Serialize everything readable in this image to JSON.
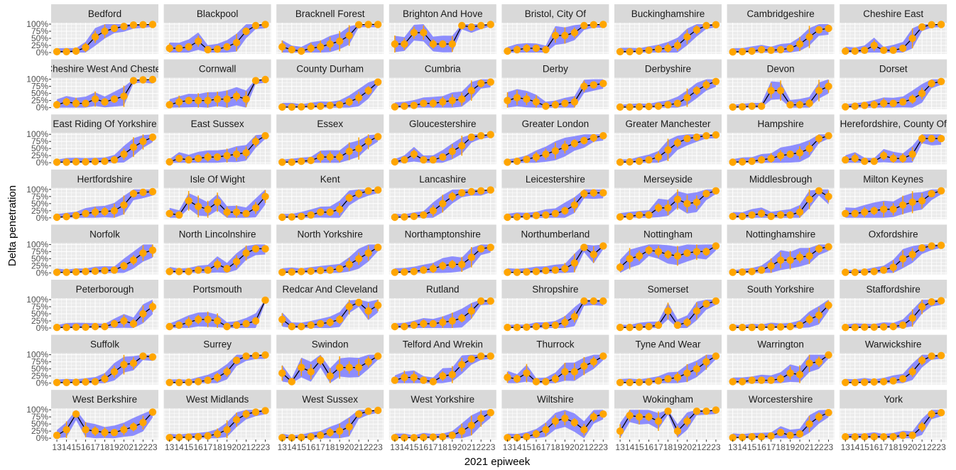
{
  "chart_data": {
    "type": "faceted_line_with_points_and_ribbon",
    "xlabel": "2021 epiweek",
    "ylabel": "Delta penetration",
    "x_ticks": [
      13,
      14,
      15,
      16,
      17,
      18,
      19,
      20,
      21,
      22,
      23
    ],
    "x_tick_labels": [
      "13",
      "14",
      "15",
      "16",
      "17",
      "18",
      "19",
      "20",
      "21",
      "22",
      "23"
    ],
    "y_ticks": [
      0,
      0.25,
      0.5,
      0.75,
      1.0
    ],
    "y_tick_labels": [
      "0%",
      "25%",
      "50%",
      "75%",
      "100%"
    ],
    "xlim": [
      12.4,
      23.6
    ],
    "ylim": [
      -0.05,
      1.05
    ],
    "colors": {
      "panel_bg": "#ebebeb",
      "grid": "#ffffff",
      "strip_bg": "#d9d9d9",
      "ribbon": "#7b7bff",
      "line": "#000000",
      "points": "#ffa500",
      "errorbars": "#ffa500"
    },
    "panels": [
      {
        "name": "Bedford",
        "y": [
          0.03,
          0.03,
          0.05,
          0.18,
          0.55,
          0.75,
          0.85,
          0.92,
          0.97,
          0.98,
          0.99
        ]
      },
      {
        "name": "Blackpool",
        "y": [
          0.15,
          0.15,
          0.2,
          0.4,
          0.1,
          0.12,
          0.2,
          0.35,
          0.75,
          0.95,
          0.99
        ]
      },
      {
        "name": "Bracknell Forest",
        "y": [
          0.2,
          0.1,
          0.05,
          0.15,
          0.2,
          0.3,
          0.4,
          0.6,
          0.98,
          0.99,
          0.99
        ]
      },
      {
        "name": "Brighton And Hove",
        "y": [
          0.3,
          0.3,
          0.7,
          0.7,
          0.3,
          0.3,
          0.3,
          0.95,
          0.9,
          0.95,
          0.99
        ]
      },
      {
        "name": "Bristol, City Of",
        "y": [
          0.05,
          0.1,
          0.15,
          0.15,
          0.1,
          0.6,
          0.6,
          0.7,
          0.95,
          0.98,
          0.99
        ]
      },
      {
        "name": "Buckinghamshire",
        "y": [
          0.03,
          0.03,
          0.05,
          0.08,
          0.12,
          0.15,
          0.25,
          0.55,
          0.8,
          0.95,
          0.98
        ]
      },
      {
        "name": "Cambridgeshire",
        "y": [
          0.02,
          0.03,
          0.05,
          0.1,
          0.08,
          0.1,
          0.15,
          0.3,
          0.55,
          0.8,
          0.85
        ]
      },
      {
        "name": "Cheshire East",
        "y": [
          0.05,
          0.05,
          0.08,
          0.25,
          0.08,
          0.08,
          0.15,
          0.5,
          0.9,
          0.98,
          0.99
        ]
      },
      {
        "name": "Cheshire West And Chester",
        "y": [
          0.1,
          0.2,
          0.15,
          0.15,
          0.3,
          0.2,
          0.3,
          0.4,
          0.95,
          0.98,
          0.99
        ]
      },
      {
        "name": "Cornwall",
        "y": [
          0.1,
          0.2,
          0.25,
          0.25,
          0.25,
          0.3,
          0.3,
          0.4,
          0.3,
          0.95,
          0.99
        ]
      },
      {
        "name": "County Durham",
        "y": [
          0.02,
          0.02,
          0.03,
          0.05,
          0.05,
          0.08,
          0.1,
          0.2,
          0.35,
          0.6,
          0.9
        ]
      },
      {
        "name": "Cumbria",
        "y": [
          0.03,
          0.05,
          0.08,
          0.15,
          0.15,
          0.2,
          0.25,
          0.3,
          0.6,
          0.85,
          0.9
        ]
      },
      {
        "name": "Derby",
        "y": [
          0.25,
          0.35,
          0.3,
          0.2,
          0.05,
          0.1,
          0.15,
          0.2,
          0.75,
          0.8,
          0.85
        ]
      },
      {
        "name": "Derbyshire",
        "y": [
          0.02,
          0.02,
          0.03,
          0.04,
          0.05,
          0.1,
          0.15,
          0.35,
          0.6,
          0.8,
          0.92
        ]
      },
      {
        "name": "Devon",
        "y": [
          0.02,
          0.03,
          0.05,
          0.05,
          0.6,
          0.6,
          0.1,
          0.1,
          0.15,
          0.6,
          0.75
        ]
      },
      {
        "name": "Dorset",
        "y": [
          0.03,
          0.05,
          0.08,
          0.1,
          0.15,
          0.15,
          0.2,
          0.3,
          0.5,
          0.85,
          0.92
        ]
      },
      {
        "name": "East Riding Of Yorkshire",
        "y": [
          0.02,
          0.02,
          0.03,
          0.03,
          0.04,
          0.05,
          0.1,
          0.3,
          0.55,
          0.75,
          0.9
        ]
      },
      {
        "name": "East Sussex",
        "y": [
          0.03,
          0.15,
          0.1,
          0.15,
          0.2,
          0.2,
          0.25,
          0.3,
          0.35,
          0.75,
          0.95
        ]
      },
      {
        "name": "Essex",
        "y": [
          0.02,
          0.02,
          0.05,
          0.08,
          0.2,
          0.2,
          0.2,
          0.4,
          0.5,
          0.75,
          0.92
        ]
      },
      {
        "name": "Gloucestershire",
        "y": [
          0.03,
          0.1,
          0.3,
          0.1,
          0.1,
          0.2,
          0.4,
          0.6,
          0.9,
          0.95,
          0.99
        ]
      },
      {
        "name": "Greater London",
        "y": [
          0.02,
          0.05,
          0.12,
          0.2,
          0.3,
          0.42,
          0.55,
          0.68,
          0.78,
          0.88,
          0.95
        ]
      },
      {
        "name": "Greater Manchester",
        "y": [
          0.02,
          0.03,
          0.05,
          0.1,
          0.2,
          0.45,
          0.7,
          0.85,
          0.9,
          0.95,
          0.98
        ]
      },
      {
        "name": "Hampshire",
        "y": [
          0.02,
          0.03,
          0.05,
          0.1,
          0.15,
          0.25,
          0.3,
          0.35,
          0.5,
          0.85,
          0.95
        ]
      },
      {
        "name": "Herefordshire, County Of",
        "y": [
          0.1,
          0.15,
          0.05,
          0.05,
          0.25,
          0.15,
          0.15,
          0.3,
          0.85,
          0.85,
          0.85
        ]
      },
      {
        "name": "Hertfordshire",
        "y": [
          0.02,
          0.04,
          0.08,
          0.15,
          0.2,
          0.22,
          0.25,
          0.45,
          0.85,
          0.9,
          0.92
        ]
      },
      {
        "name": "Isle Of Wight",
        "y": [
          0.15,
          0.1,
          0.6,
          0.4,
          0.3,
          0.55,
          0.2,
          0.2,
          0.15,
          0.35,
          0.75
        ]
      },
      {
        "name": "Kent",
        "y": [
          0.02,
          0.03,
          0.05,
          0.1,
          0.2,
          0.2,
          0.3,
          0.7,
          0.85,
          0.95,
          0.98
        ]
      },
      {
        "name": "Lancashire",
        "y": [
          0.02,
          0.03,
          0.05,
          0.1,
          0.25,
          0.5,
          0.75,
          0.88,
          0.92,
          0.95,
          0.98
        ]
      },
      {
        "name": "Leicestershire",
        "y": [
          0.02,
          0.03,
          0.05,
          0.08,
          0.1,
          0.15,
          0.25,
          0.45,
          0.85,
          0.88,
          0.88
        ]
      },
      {
        "name": "Merseyside",
        "y": [
          0.03,
          0.05,
          0.1,
          0.1,
          0.35,
          0.35,
          0.65,
          0.5,
          0.55,
          0.85,
          0.95
        ]
      },
      {
        "name": "Middlesbrough",
        "y": [
          0.05,
          0.05,
          0.1,
          0.15,
          0.05,
          0.1,
          0.1,
          0.2,
          0.65,
          0.95,
          0.75
        ]
      },
      {
        "name": "Milton Keynes",
        "y": [
          0.15,
          0.15,
          0.2,
          0.25,
          0.3,
          0.3,
          0.45,
          0.55,
          0.6,
          0.85,
          0.95
        ]
      },
      {
        "name": "Norfolk",
        "y": [
          0.02,
          0.02,
          0.03,
          0.05,
          0.06,
          0.08,
          0.1,
          0.25,
          0.45,
          0.7,
          0.8
        ]
      },
      {
        "name": "North Lincolnshire",
        "y": [
          0.05,
          0.05,
          0.05,
          0.1,
          0.1,
          0.3,
          0.15,
          0.4,
          0.7,
          0.85,
          0.85
        ]
      },
      {
        "name": "North Yorkshire",
        "y": [
          0.02,
          0.03,
          0.05,
          0.06,
          0.08,
          0.1,
          0.15,
          0.3,
          0.5,
          0.7,
          0.9
        ]
      },
      {
        "name": "Northamptonshire",
        "y": [
          0.02,
          0.03,
          0.05,
          0.1,
          0.15,
          0.25,
          0.3,
          0.3,
          0.55,
          0.85,
          0.9
        ]
      },
      {
        "name": "Northumberland",
        "y": [
          0.02,
          0.02,
          0.03,
          0.05,
          0.08,
          0.1,
          0.15,
          0.35,
          0.9,
          0.65,
          0.95
        ]
      },
      {
        "name": "Nottingham",
        "y": [
          0.2,
          0.5,
          0.6,
          0.8,
          0.75,
          0.65,
          0.6,
          0.7,
          0.75,
          0.75,
          0.95
        ]
      },
      {
        "name": "Nottinghamshire",
        "y": [
          0.02,
          0.03,
          0.05,
          0.1,
          0.25,
          0.45,
          0.45,
          0.55,
          0.6,
          0.85,
          0.92
        ]
      },
      {
        "name": "Oxfordshire",
        "y": [
          0.02,
          0.02,
          0.03,
          0.05,
          0.1,
          0.2,
          0.5,
          0.65,
          0.88,
          0.95,
          0.97
        ]
      },
      {
        "name": "Peterborough",
        "y": [
          0.02,
          0.02,
          0.03,
          0.03,
          0.05,
          0.05,
          0.15,
          0.25,
          0.15,
          0.5,
          0.75
        ]
      },
      {
        "name": "Portsmouth",
        "y": [
          0.05,
          0.1,
          0.2,
          0.3,
          0.3,
          0.25,
          0.05,
          0.1,
          0.15,
          0.25,
          0.98
        ]
      },
      {
        "name": "Redcar And Cleveland",
        "y": [
          0.3,
          0.05,
          0.05,
          0.1,
          0.15,
          0.2,
          0.3,
          0.75,
          0.9,
          0.6,
          0.8
        ]
      },
      {
        "name": "Rutland",
        "y": [
          0.05,
          0.05,
          0.1,
          0.15,
          0.15,
          0.2,
          0.25,
          0.35,
          0.6,
          0.95,
          0.95
        ]
      },
      {
        "name": "Shropshire",
        "y": [
          0.02,
          0.02,
          0.03,
          0.05,
          0.08,
          0.1,
          0.2,
          0.4,
          0.95,
          0.95,
          0.95
        ]
      },
      {
        "name": "Somerset",
        "y": [
          0.02,
          0.02,
          0.03,
          0.05,
          0.1,
          0.6,
          0.1,
          0.2,
          0.6,
          0.85,
          0.95
        ]
      },
      {
        "name": "South Yorkshire",
        "y": [
          0.02,
          0.02,
          0.02,
          0.03,
          0.03,
          0.04,
          0.05,
          0.1,
          0.3,
          0.45,
          0.8
        ]
      },
      {
        "name": "Staffordshire",
        "y": [
          0.02,
          0.02,
          0.03,
          0.03,
          0.04,
          0.05,
          0.1,
          0.35,
          0.75,
          0.92,
          0.96
        ]
      },
      {
        "name": "Suffolk",
        "y": [
          0.02,
          0.02,
          0.03,
          0.04,
          0.05,
          0.15,
          0.4,
          0.65,
          0.7,
          0.95,
          0.92
        ]
      },
      {
        "name": "Surrey",
        "y": [
          0.02,
          0.02,
          0.03,
          0.05,
          0.1,
          0.2,
          0.4,
          0.8,
          0.95,
          0.97,
          0.99
        ]
      },
      {
        "name": "Swindon",
        "y": [
          0.35,
          0.05,
          0.55,
          0.4,
          0.8,
          0.25,
          0.55,
          0.55,
          0.55,
          0.75,
          0.95
        ]
      },
      {
        "name": "Telford And Wrekin",
        "y": [
          0.1,
          0.2,
          0.2,
          0.1,
          0.05,
          0.25,
          0.3,
          0.65,
          0.85,
          0.95,
          0.95
        ]
      },
      {
        "name": "Thurrock",
        "y": [
          0.2,
          0.15,
          0.35,
          0.05,
          0.05,
          0.15,
          0.4,
          0.4,
          0.6,
          0.75,
          0.95
        ]
      },
      {
        "name": "Tyne And Wear",
        "y": [
          0.02,
          0.02,
          0.03,
          0.04,
          0.08,
          0.15,
          0.2,
          0.35,
          0.5,
          0.75,
          0.95
        ]
      },
      {
        "name": "Warrington",
        "y": [
          0.05,
          0.05,
          0.1,
          0.1,
          0.1,
          0.15,
          0.35,
          0.3,
          0.7,
          0.75,
          0.99
        ]
      },
      {
        "name": "Warwickshire",
        "y": [
          0.02,
          0.02,
          0.03,
          0.04,
          0.05,
          0.08,
          0.15,
          0.4,
          0.8,
          0.95,
          0.97
        ]
      },
      {
        "name": "West Berkshire",
        "y": [
          0.1,
          0.3,
          0.85,
          0.3,
          0.25,
          0.2,
          0.2,
          0.3,
          0.4,
          0.55,
          0.92
        ]
      },
      {
        "name": "West Midlands",
        "y": [
          0.02,
          0.03,
          0.04,
          0.05,
          0.08,
          0.15,
          0.3,
          0.65,
          0.85,
          0.92,
          0.97
        ]
      },
      {
        "name": "West Sussex",
        "y": [
          0.02,
          0.02,
          0.03,
          0.05,
          0.1,
          0.2,
          0.25,
          0.4,
          0.85,
          0.95,
          0.98
        ]
      },
      {
        "name": "West Yorkshire",
        "y": [
          0.02,
          0.02,
          0.02,
          0.03,
          0.04,
          0.05,
          0.1,
          0.25,
          0.45,
          0.7,
          0.9
        ]
      },
      {
        "name": "Wiltshire",
        "y": [
          0.02,
          0.02,
          0.05,
          0.15,
          0.3,
          0.6,
          0.7,
          0.55,
          0.3,
          0.75,
          0.85
        ]
      },
      {
        "name": "Wokingham",
        "y": [
          0.25,
          0.8,
          0.75,
          0.75,
          0.6,
          0.95,
          0.25,
          0.6,
          0.95,
          0.95,
          0.99
        ]
      },
      {
        "name": "Worcestershire",
        "y": [
          0.02,
          0.03,
          0.05,
          0.05,
          0.08,
          0.2,
          0.1,
          0.15,
          0.5,
          0.75,
          0.9
        ]
      },
      {
        "name": "York",
        "y": [
          0.05,
          0.05,
          0.05,
          0.05,
          0.05,
          0.05,
          0.1,
          0.1,
          0.4,
          0.85,
          0.9
        ]
      }
    ]
  }
}
